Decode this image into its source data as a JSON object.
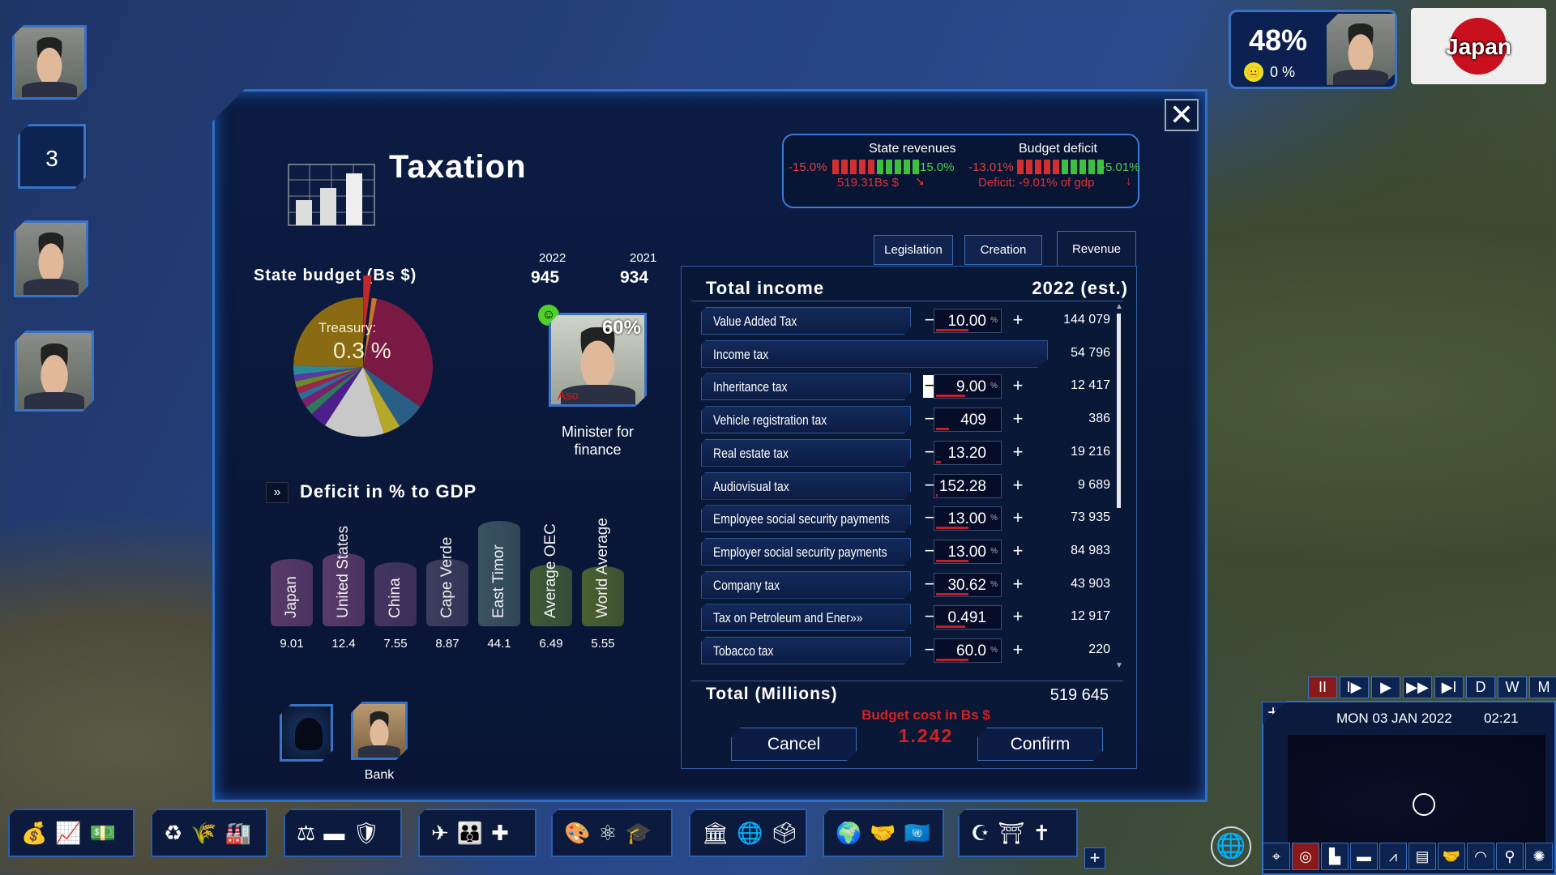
{
  "window": {
    "title": "Taxation",
    "close_icon": "close-icon"
  },
  "indicators": {
    "state_revenues": {
      "label": "State revenues",
      "min": "-15.0%",
      "max": "15.0%",
      "value": "519.31Bs $",
      "trend": "down-right",
      "level": 0.5
    },
    "budget_deficit": {
      "label": "Budget deficit",
      "min": "-13.01%",
      "max": "-5.01%",
      "value": "Deficit: -9.01% of gdp",
      "trend": "down",
      "level": 0.5
    }
  },
  "tabs": [
    {
      "label": "Legislation",
      "active": false
    },
    {
      "label": "Creation",
      "active": false
    },
    {
      "label": "Revenue",
      "active": true
    }
  ],
  "budget": {
    "title": "State budget (Bs $)",
    "year1": "2022",
    "value1": "945",
    "year2": "2021",
    "value2": "934",
    "treasury_label": "Treasury:",
    "treasury_value": "0.3 %",
    "pie_slices": [
      {
        "value": 2,
        "color": "#c0282a"
      },
      {
        "value": 1.2,
        "color": "#c7772a"
      },
      {
        "value": 31.5,
        "color": "#7a1a44"
      },
      {
        "value": 6.5,
        "color": "#2a5f85"
      },
      {
        "value": 4,
        "color": "#b5a72a"
      },
      {
        "value": 14,
        "color": "#c8c8c8"
      },
      {
        "value": 4,
        "color": "#4d1f8a"
      },
      {
        "value": 2,
        "color": "#2d7a5a"
      },
      {
        "value": 2,
        "color": "#7a2070"
      },
      {
        "value": 1.5,
        "color": "#2a6f9a"
      },
      {
        "value": 1.5,
        "color": "#a0244a"
      },
      {
        "value": 1.5,
        "color": "#6a8a2a"
      },
      {
        "value": 1.5,
        "color": "#5a3aa0"
      },
      {
        "value": 2,
        "color": "#2a8a9a"
      },
      {
        "value": 24.8,
        "color": "#8a6a12"
      }
    ]
  },
  "minister": {
    "name": "Aso",
    "approval": "60%",
    "role": "Minister for finance",
    "mood": "happy"
  },
  "deficit": {
    "title": "Deficit in % to GDP",
    "chart_data": {
      "type": "bar",
      "categories": [
        "Japan",
        "United States",
        "China",
        "Cape Verde",
        "East Timor",
        "Average OEC",
        "World Average"
      ],
      "values": [
        9.01,
        12.4,
        7.55,
        8.87,
        44.1,
        6.49,
        5.55
      ],
      "labels": [
        "9.01",
        "12.4",
        "7.55",
        "8.87",
        "44.1",
        "6.49",
        "5.55"
      ],
      "colors": [
        "#5a3a6a",
        "#5a3a6a",
        "#453562",
        "#3d3d5e",
        "#3a5360",
        "#3f5a38",
        "#4a6030"
      ]
    }
  },
  "advisors": [
    {
      "label": "",
      "icon": "sns-hacker-icon"
    },
    {
      "label": "Bank"
    }
  ],
  "income": {
    "title": "Total income",
    "year": "2022 (est.)",
    "rows": [
      {
        "label": "Value Added Tax",
        "value": "10.00",
        "unit": "%",
        "level": 0.5,
        "revenue": "144 079"
      },
      {
        "label": "Income tax",
        "value": null,
        "unit": "",
        "level": null,
        "revenue": "54 796"
      },
      {
        "label": "Inheritance tax",
        "value": "9.00",
        "unit": "%",
        "level": 0.45,
        "revenue": "12 417",
        "minus_highlighted": true
      },
      {
        "label": "Vehicle registration tax",
        "value": "409",
        "unit": "",
        "level": 0.2,
        "revenue": "386"
      },
      {
        "label": "Real estate tax",
        "value": "13.20",
        "unit": "",
        "level": 0.08,
        "revenue": "19 216"
      },
      {
        "label": "Audiovisual tax",
        "value": "152.28",
        "unit": "",
        "level": 0.03,
        "revenue": "9 689"
      },
      {
        "label": "Employee social security payments",
        "value": "13.00",
        "unit": "%",
        "level": 0.5,
        "revenue": "73 935"
      },
      {
        "label": "Employer social security payments",
        "value": "13.00",
        "unit": "%",
        "level": 0.5,
        "revenue": "84 983"
      },
      {
        "label": "Company tax",
        "value": "30.62",
        "unit": "%",
        "level": 0.5,
        "revenue": "43 903"
      },
      {
        "label": "Tax on Petroleum and Ener»»",
        "value": "0.491",
        "unit": "",
        "level": 0.45,
        "revenue": "12 917"
      },
      {
        "label": "Tobacco tax",
        "value": "60.0",
        "unit": "%",
        "level": 0.5,
        "revenue": "220"
      }
    ],
    "total_label": "Total (Millions)",
    "total_value": "519 645",
    "budget_cost_label": "Budget cost in Bs $",
    "budget_cost_value": "1.242",
    "cancel": "Cancel",
    "confirm": "Confirm"
  },
  "leader": {
    "approval": "48%",
    "mood_value": "0 %",
    "country": "Japan"
  },
  "sidebar": {
    "badge": "3"
  },
  "time": {
    "date": "MON 03 JAN 2022",
    "clock": "02:21",
    "speeds": [
      "II",
      "I▶",
      "▶",
      "▶▶",
      "▶I",
      "D",
      "W",
      "M"
    ],
    "active_speed": 0
  },
  "colors": {
    "accent": "#2f6fc4",
    "negative": "#d32f2f",
    "positive": "#3fbf3f",
    "panel": "#0a1738"
  }
}
